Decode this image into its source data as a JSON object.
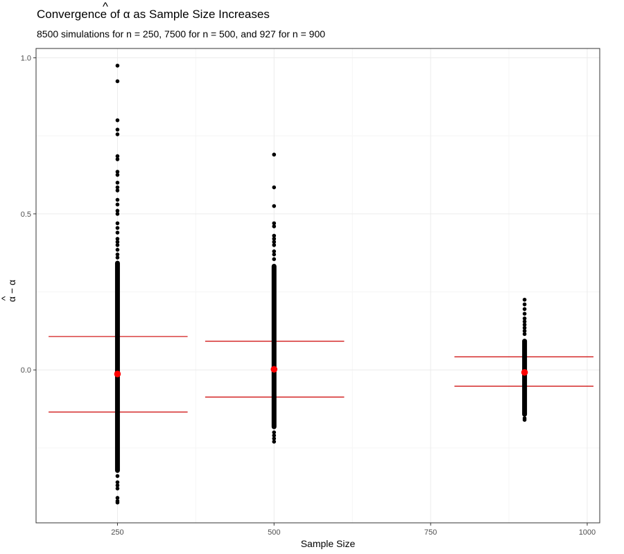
{
  "chart_data": {
    "type": "scatter",
    "title_prefix": "Convergence of ",
    "title_symbol": "α",
    "title_suffix": " as Sample Size Increases",
    "subtitle": "8500 simulations for n = 250, 7500 for n = 500, and 927 for n = 900",
    "xlabel": "Sample Size",
    "ylabel_symbol": "α",
    "ylabel_rest": " − α",
    "xlim": [
      120,
      1020
    ],
    "ylim": [
      -0.49,
      1.03
    ],
    "x_ticks": [
      250,
      500,
      750,
      1000
    ],
    "x_tick_labels": [
      "250",
      "500",
      "750",
      "1000"
    ],
    "y_ticks": [
      0.0,
      0.5,
      1.0
    ],
    "y_tick_labels": [
      "0.0",
      "0.5",
      "1.0"
    ],
    "x_minor": [
      375,
      625,
      875
    ],
    "y_minor": [
      -0.25,
      0.25,
      0.75
    ],
    "grid": true,
    "colors": {
      "points": "#000000",
      "mean": "#ff0000",
      "bands": "#cc0000"
    },
    "groups": [
      {
        "n": 250,
        "mean": -0.013,
        "upper": 0.107,
        "lower": -0.135,
        "band_x": [
          140,
          362
        ],
        "core_range": [
          -0.33,
          0.35
        ],
        "outliers": [
          0.975,
          0.925,
          0.8,
          0.77,
          0.755,
          0.685,
          0.675,
          0.635,
          0.625,
          0.6,
          0.585,
          0.575,
          0.545,
          0.53,
          0.51,
          0.5,
          0.47,
          0.455,
          0.44,
          0.42,
          0.41,
          0.4,
          0.385,
          0.37,
          0.36,
          -0.34,
          -0.36,
          -0.37,
          -0.38,
          -0.41,
          -0.42,
          -0.425
        ]
      },
      {
        "n": 500,
        "mean": 0.002,
        "upper": 0.092,
        "lower": -0.087,
        "band_x": [
          390,
          612
        ],
        "core_range": [
          -0.19,
          0.34
        ],
        "outliers": [
          0.69,
          0.585,
          0.525,
          0.47,
          0.46,
          0.43,
          0.42,
          0.41,
          0.4,
          0.38,
          0.37,
          0.355,
          -0.2,
          -0.21,
          -0.22,
          -0.23
        ]
      },
      {
        "n": 900,
        "mean": -0.008,
        "upper": 0.042,
        "lower": -0.052,
        "band_x": [
          788,
          1010
        ],
        "core_range": [
          -0.15,
          0.1
        ],
        "outliers": [
          0.225,
          0.21,
          0.195,
          0.18,
          0.165,
          0.155,
          0.145,
          0.135,
          0.125,
          0.115,
          -0.155,
          -0.16
        ]
      }
    ]
  }
}
